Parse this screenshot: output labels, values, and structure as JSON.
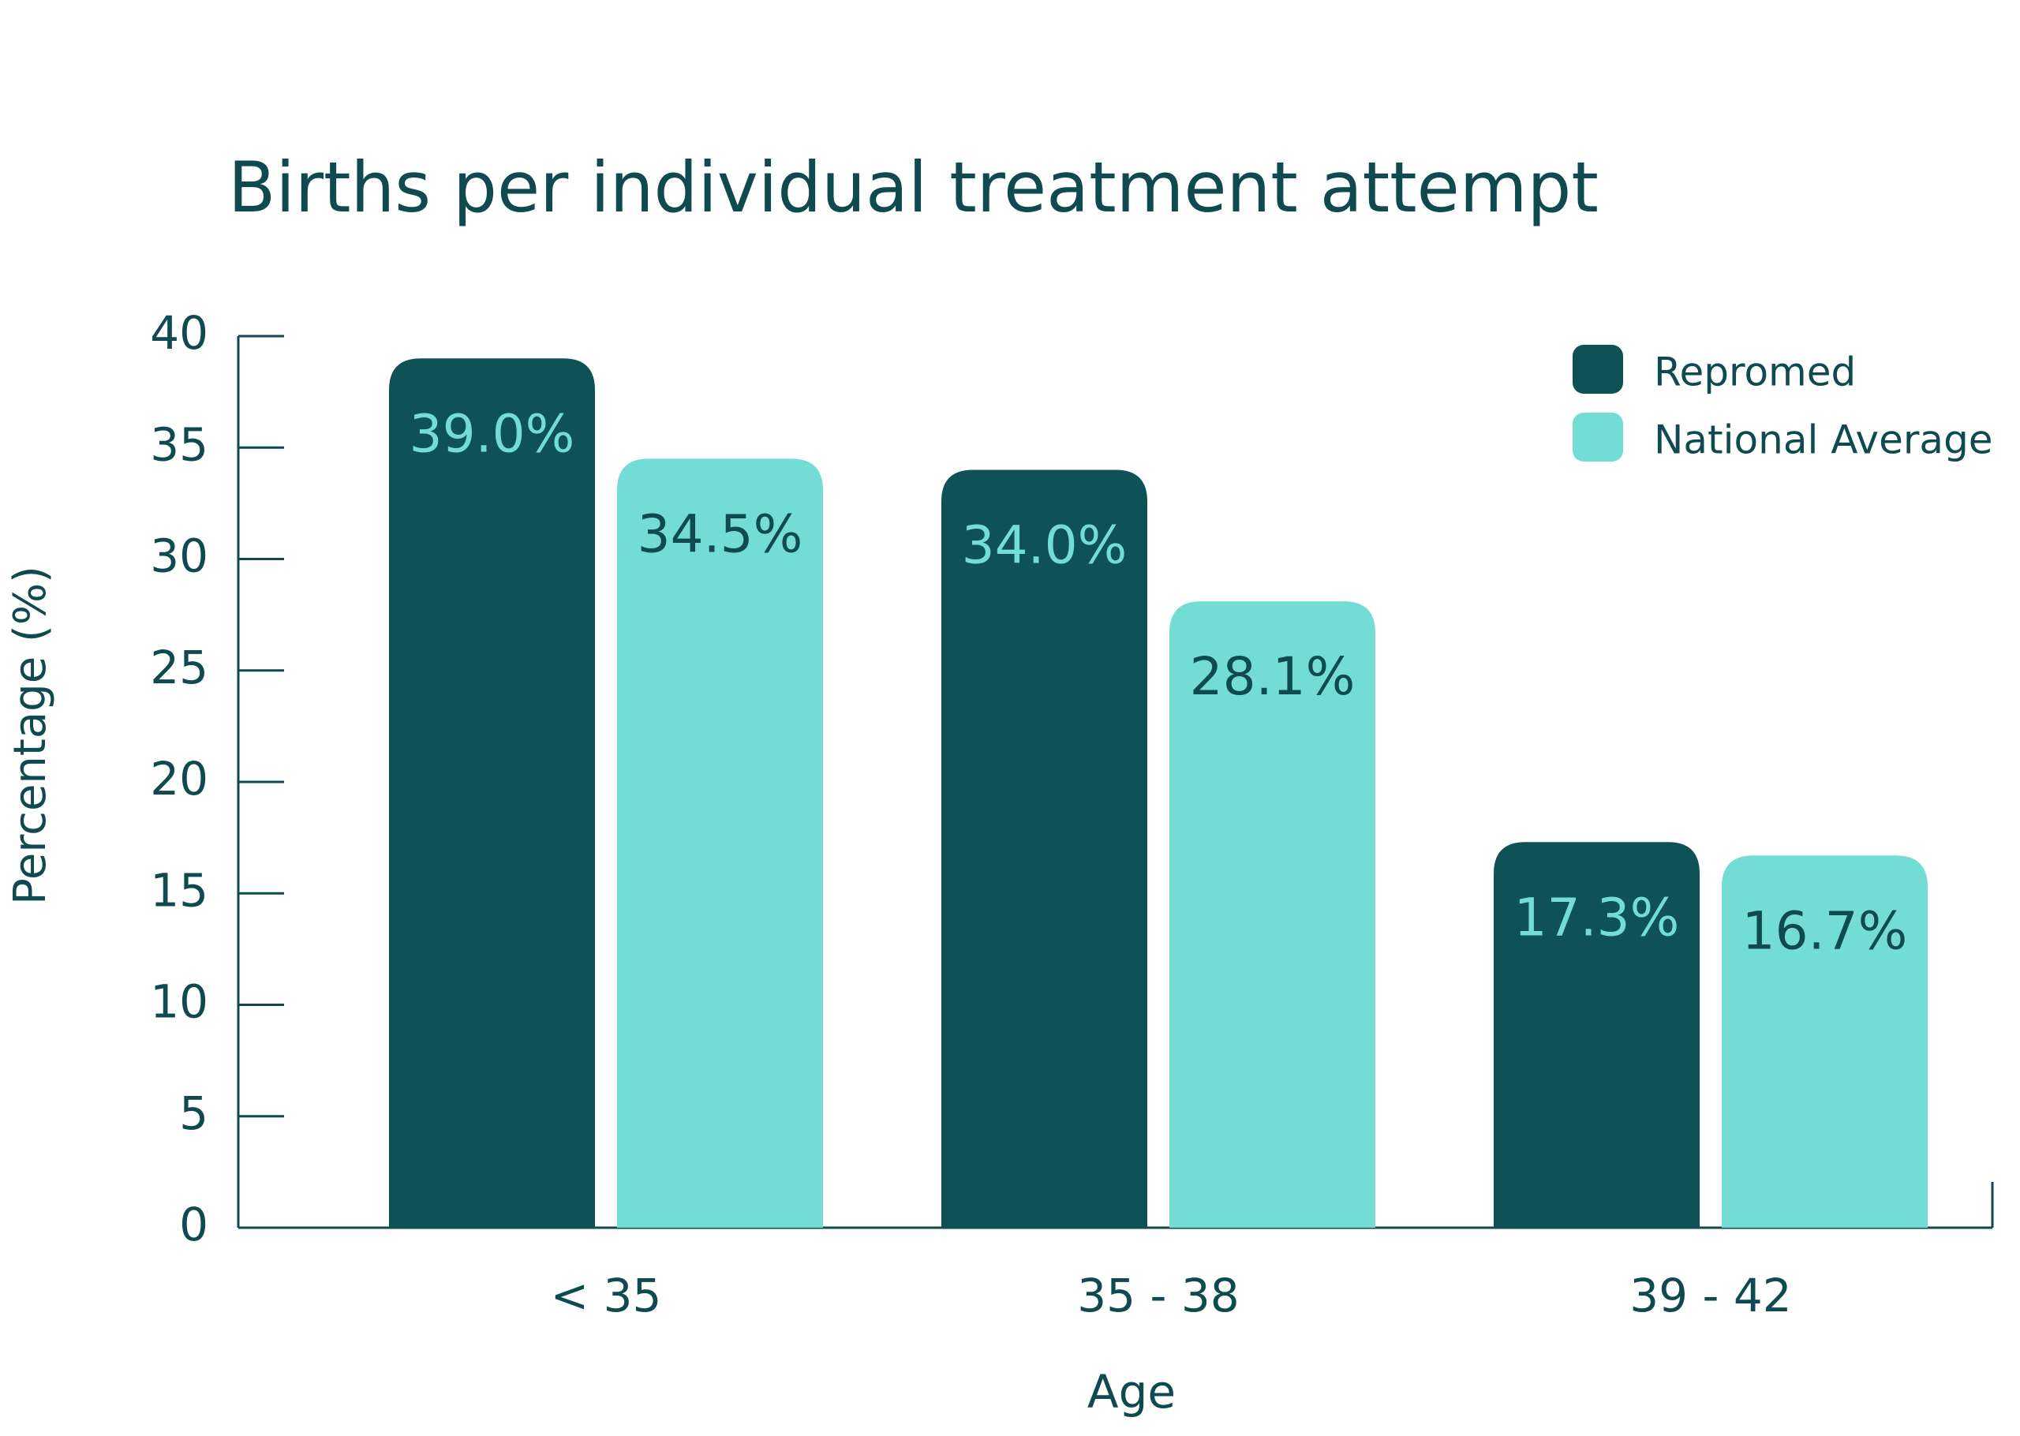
{
  "chart_data": {
    "type": "bar",
    "title": "Births per individual treatment attempt",
    "x_label": "Age",
    "y_label": "Percentage (%)",
    "categories": [
      "< 35",
      "35 - 38",
      "39 - 42"
    ],
    "series": [
      {
        "name": "Repromed",
        "color": "#0e5257",
        "label_color": "#73dcd5",
        "values": [
          39.0,
          34.0,
          17.3
        ],
        "value_labels": [
          "39.0%",
          "34.0%",
          "17.3%"
        ]
      },
      {
        "name": "National Average",
        "color": "#73dcd5",
        "label_color": "#0e4a4f",
        "values": [
          34.5,
          28.1,
          16.7
        ],
        "value_labels": [
          "34.5%",
          "28.1%",
          "16.7%"
        ]
      }
    ],
    "ylim": [
      0,
      40
    ],
    "yticks": [
      0,
      5,
      10,
      15,
      20,
      25,
      30,
      35,
      40
    ],
    "legend": "top-right",
    "grid": false
  }
}
